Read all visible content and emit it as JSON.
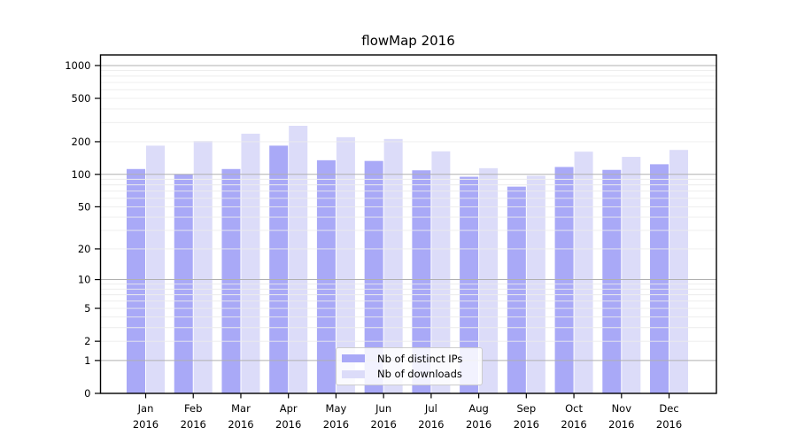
{
  "title": "flowMap 2016",
  "chart_data": {
    "type": "bar",
    "title": "flowMap 2016",
    "y_scale": "log1p",
    "ylim": [
      0,
      1250
    ],
    "y_ticks": [
      0,
      1,
      2,
      5,
      10,
      20,
      50,
      100,
      200,
      500,
      1000
    ],
    "grid": "on",
    "legend_position": "lower-center",
    "months": [
      "Jan",
      "Feb",
      "Mar",
      "Apr",
      "May",
      "Jun",
      "Jul",
      "Aug",
      "Sep",
      "Oct",
      "Nov",
      "Dec"
    ],
    "year": "2016",
    "series": [
      {
        "name": "Nb of distinct IPs",
        "color": "#a9a9f7",
        "values": [
          112,
          100,
          112,
          184,
          135,
          133,
          109,
          95,
          77,
          117,
          110,
          124
        ]
      },
      {
        "name": "Nb of downloads",
        "color": "#dcdcf9",
        "values": [
          184,
          203,
          237,
          280,
          220,
          212,
          163,
          114,
          97,
          162,
          145,
          168
        ]
      }
    ],
    "colors": {
      "major_grid": "#b0b0b0",
      "minor_grid": "#ececec",
      "axis": "#000000",
      "tick_text": "#000000"
    }
  }
}
